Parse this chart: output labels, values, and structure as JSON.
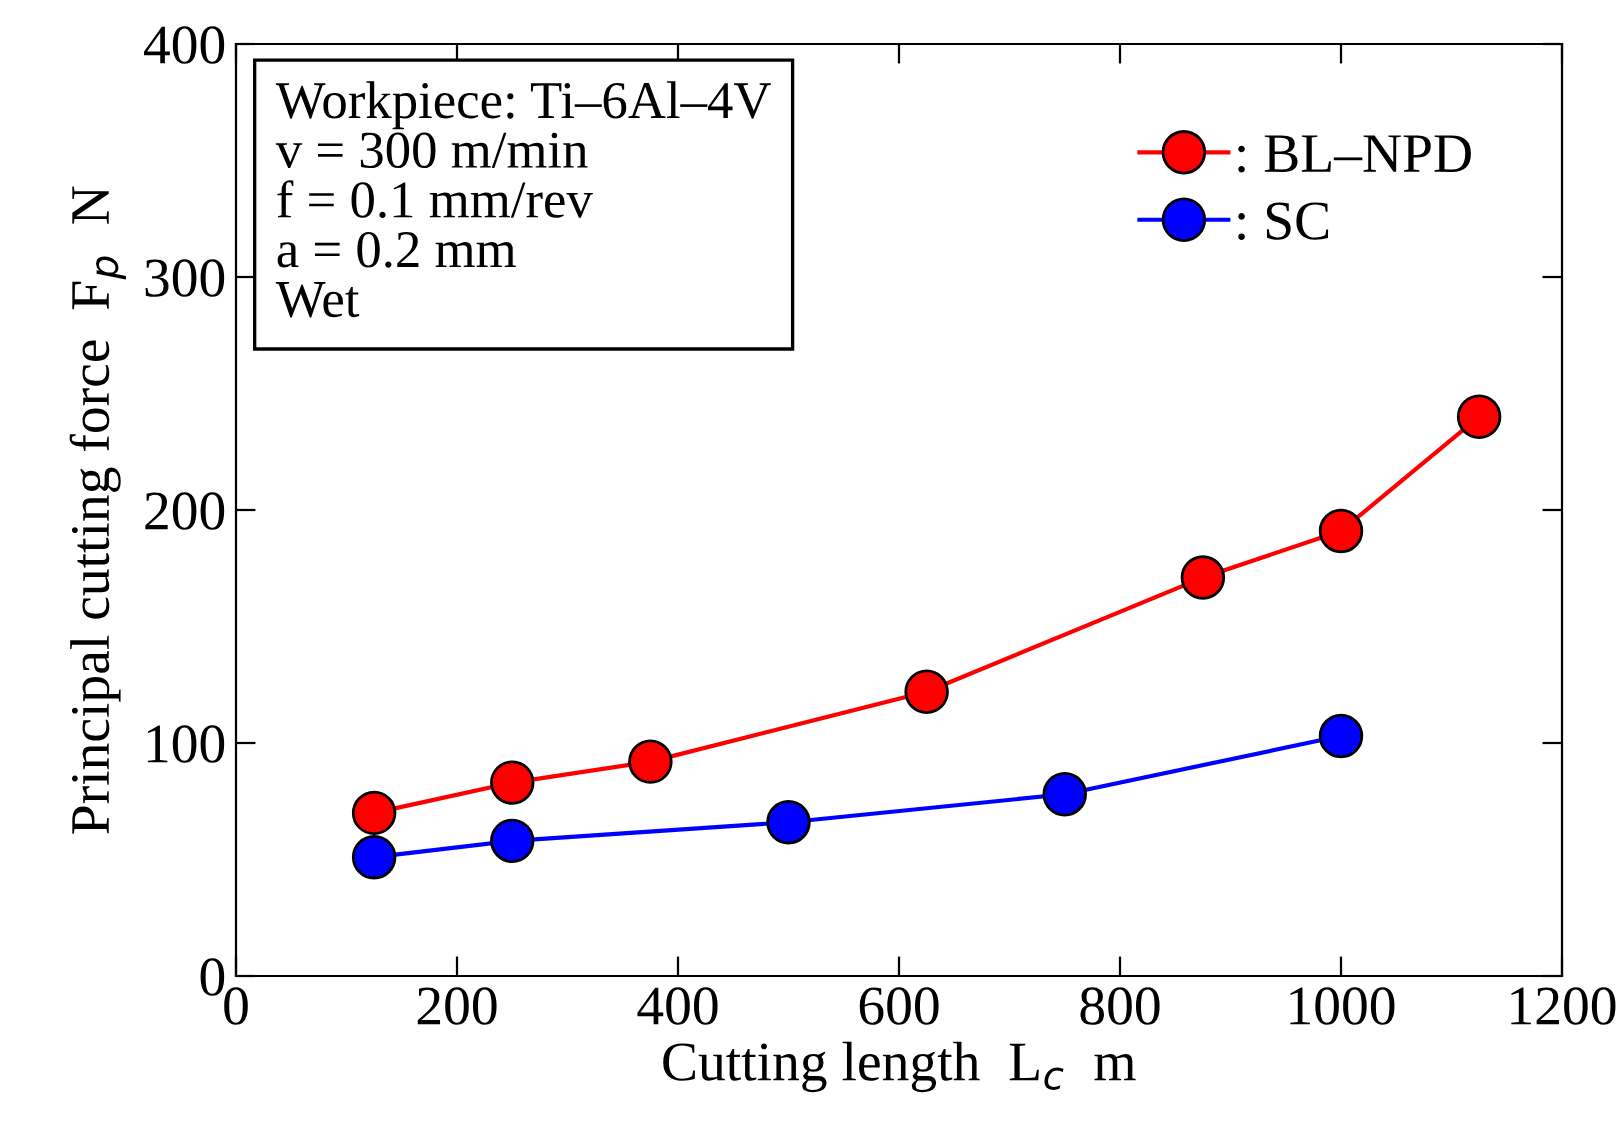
{
  "chart_data": {
    "type": "line",
    "xlabel": "Cutting length  L$_{c}$  m",
    "ylabel": "Principal cutting force  F$_{p}$  N",
    "annotations": [
      "Workpiece: Ti–6Al–4V",
      "v = 300 m/min",
      "f = 0.1 mm/rev",
      "a = 0.2 mm",
      "Wet"
    ],
    "series": [
      {
        "name": ": BL–NPD",
        "color": "#ff0000",
        "x": [
          125,
          250,
          375,
          625,
          875,
          1000,
          1125
        ],
        "values": [
          70,
          83,
          92,
          122,
          171,
          191,
          240
        ]
      },
      {
        "name": ": SC",
        "color": "#0000ff",
        "x": [
          125,
          250,
          500,
          750,
          1000
        ],
        "values": [
          51,
          58,
          66,
          78,
          103
        ]
      }
    ],
    "xlim": [
      0,
      1200
    ],
    "xticks": [
      0,
      200,
      400,
      600,
      800,
      1000,
      1200
    ],
    "ylim": [
      0,
      400
    ],
    "yticks": [
      0,
      100,
      200,
      300,
      400
    ],
    "marker": "circle",
    "line_style": "solid",
    "grid": false,
    "legend": "top right"
  }
}
